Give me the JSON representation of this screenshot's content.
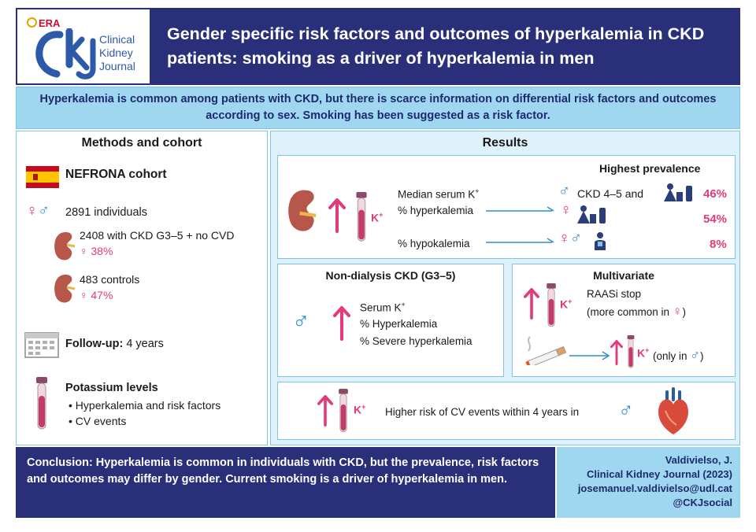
{
  "header": {
    "era": "ERA",
    "journal_lines": [
      "Clinical",
      "Kidney",
      "Journal"
    ],
    "title": "Gender specific risk factors and outcomes of hyperkalemia in CKD patients: smoking as a driver of hyperkalemia in men"
  },
  "intro": "Hyperkalemia is common among patients with CKD, but there is scarce information on differential risk factors and outcomes according to sex. Smoking has been suggested as a risk factor.",
  "methods": {
    "title": "Methods and cohort",
    "cohort": "NEFRONA cohort",
    "individuals": "2891 individuals",
    "ckd_group": "2408 with CKD G3–5 + no CVD",
    "ckd_female": "38%",
    "controls": "483 controls",
    "controls_female": "47%",
    "followup_label": "Follow-up:",
    "followup_value": "4 years",
    "potassium_title": "Potassium levels",
    "potassium_items": [
      "Hyperkalemia and risk factors",
      "CV events"
    ]
  },
  "results": {
    "title": "Results",
    "prevalence": {
      "title": "Highest prevalence",
      "line1": "Median serum K",
      "line2": "% hyperkalemia",
      "line3": "% hypokalemia",
      "ckd_label": "CKD 4–5 and",
      "pct_men": "46%",
      "pct_women": "54%",
      "pct_hypo": "8%"
    },
    "nondialysis": {
      "title": "Non-dialysis CKD (G3–5)",
      "items": [
        "Serum K",
        "% Hyperkalemia",
        "% Severe hyperkalemia"
      ]
    },
    "multivariate": {
      "title": "Multivariate",
      "raasi": "RAASi stop",
      "raasi_note": "(more common in",
      "only_in": "(only in"
    },
    "cv": "Higher risk of CV events within 4 years in"
  },
  "conclusion": "Conclusion: Hyperkalemia is common in individuals with CKD, but the prevalence, risk factors and outcomes may differ by gender. Current smoking is a driver of hyperkalemia in men.",
  "reference": {
    "author": "Valdivielso, J.",
    "journal": "Clinical Kidney Journal (2023)",
    "email": "josemanuel.valdivielso@udl.cat",
    "handle": "@CKJsocial"
  },
  "symbols": {
    "male": "♂",
    "female": "♀",
    "kplus": "K+"
  },
  "colors": {
    "navy": "#2a2f7a",
    "light_blue": "#9fd6f0",
    "pink": "#e23a7b",
    "blue": "#2a8fd0"
  }
}
